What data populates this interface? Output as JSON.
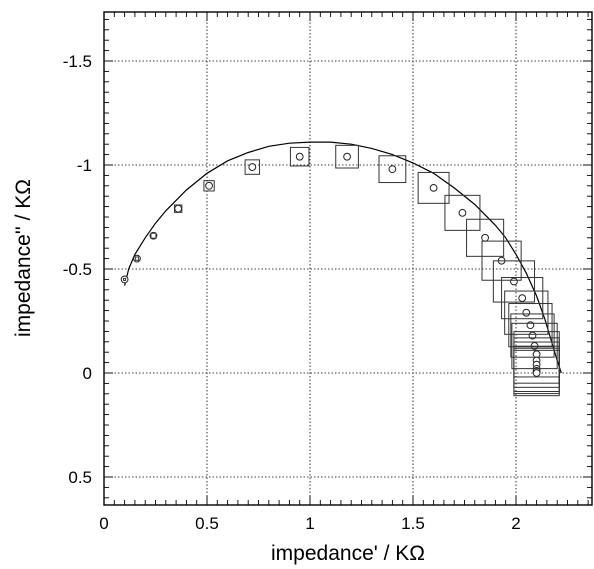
{
  "chart_data": {
    "type": "scatter",
    "title": "",
    "xlabel": "impedance' / KΩ",
    "ylabel": "impedance'' / KΩ",
    "xlim": [
      0,
      2.35
    ],
    "ylim": [
      0.6,
      -1.75
    ],
    "y_axis_inverted": true,
    "xticks": [
      0,
      0.5,
      1,
      1.5,
      2
    ],
    "xtick_labels": [
      "0",
      "0.5",
      "1",
      "1.5",
      "2"
    ],
    "yticks": [
      -1.5,
      -1,
      -0.5,
      0,
      0.5
    ],
    "ytick_labels": [
      "-1.5",
      "-1",
      "-0.5",
      "0",
      "0.5"
    ],
    "grid": true,
    "grid_style": "dotted",
    "series": [
      {
        "kind": "fit-line",
        "x": [
          0.1,
          0.12,
          0.15,
          0.2,
          0.25,
          0.3,
          0.4,
          0.5,
          0.6,
          0.7,
          0.8,
          0.9,
          1.0,
          1.1,
          1.2,
          1.3,
          1.4,
          1.5,
          1.6,
          1.7,
          1.8,
          1.9,
          1.95,
          2.0,
          2.05,
          2.1,
          2.14,
          2.17,
          2.2,
          2.22
        ],
        "y": [
          -0.42,
          -0.5,
          -0.57,
          -0.65,
          -0.72,
          -0.78,
          -0.88,
          -0.96,
          -1.02,
          -1.06,
          -1.09,
          -1.105,
          -1.11,
          -1.11,
          -1.1,
          -1.08,
          -1.05,
          -1.01,
          -0.96,
          -0.89,
          -0.81,
          -0.71,
          -0.65,
          -0.57,
          -0.48,
          -0.37,
          -0.26,
          -0.16,
          -0.06,
          0.0
        ]
      },
      {
        "kind": "circles",
        "x": [
          0.1,
          0.16,
          0.24,
          0.36,
          0.51,
          0.72,
          0.95,
          1.18,
          1.4,
          1.6,
          1.74,
          1.85,
          1.93,
          1.99,
          2.03,
          2.05,
          2.07,
          2.08,
          2.09,
          2.1,
          2.1,
          2.1,
          2.1,
          2.1,
          2.1
        ],
        "y": [
          -0.45,
          -0.55,
          -0.66,
          -0.79,
          -0.9,
          -0.99,
          -1.04,
          -1.04,
          -0.98,
          -0.89,
          -0.77,
          -0.65,
          -0.54,
          -0.44,
          -0.36,
          -0.29,
          -0.23,
          -0.18,
          -0.13,
          -0.09,
          -0.06,
          -0.04,
          -0.02,
          -0.01,
          0.0
        ]
      },
      {
        "kind": "error-squares",
        "x": [
          0.1,
          0.16,
          0.24,
          0.36,
          0.51,
          0.72,
          0.95,
          1.18,
          1.4,
          1.6,
          1.74,
          1.85,
          1.93,
          1.99,
          2.03,
          2.05,
          2.07,
          2.08,
          2.09,
          2.1,
          2.1,
          2.1,
          2.1,
          2.1,
          2.1
        ],
        "y": [
          -0.45,
          -0.55,
          -0.66,
          -0.79,
          -0.9,
          -0.99,
          -1.04,
          -1.04,
          -0.98,
          -0.89,
          -0.77,
          -0.65,
          -0.54,
          -0.44,
          -0.36,
          -0.29,
          -0.23,
          -0.18,
          -0.13,
          -0.09,
          -0.06,
          -0.04,
          -0.02,
          -0.01,
          0.0
        ],
        "half_width": [
          0.005,
          0.008,
          0.012,
          0.018,
          0.025,
          0.035,
          0.045,
          0.055,
          0.065,
          0.075,
          0.085,
          0.09,
          0.095,
          0.1,
          0.1,
          0.105,
          0.105,
          0.105,
          0.11,
          0.11,
          0.11,
          0.11,
          0.11,
          0.11,
          0.11
        ]
      }
    ]
  }
}
